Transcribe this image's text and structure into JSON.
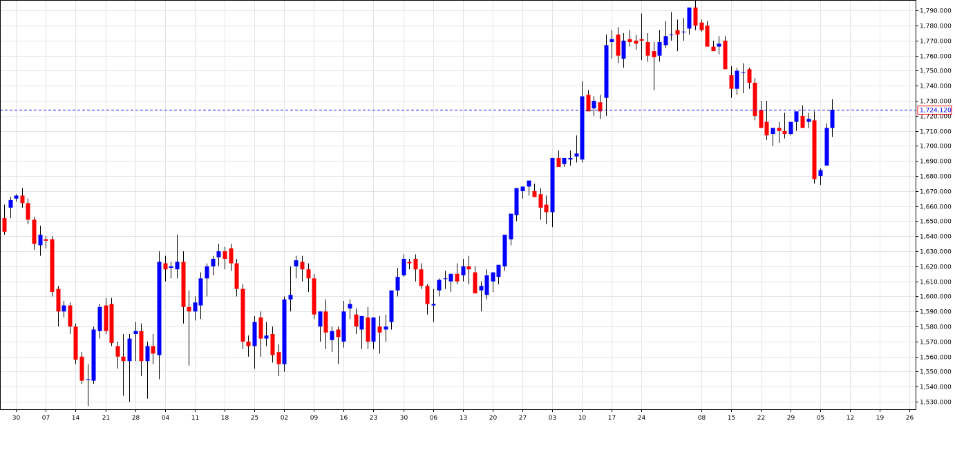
{
  "chart_data": {
    "type": "candlestick",
    "colors": {
      "up": "#0000ff",
      "down": "#ff0000",
      "wick": "#000000",
      "grid": "#e4e4e4",
      "frame": "#000000",
      "current_line": "#0000ff",
      "price_box": "#ff0000"
    },
    "ylim": [
      1525000,
      1797000
    ],
    "y_ticks": [
      "1,530.000",
      "1,540.000",
      "1,550.000",
      "1,560.000",
      "1,570.000",
      "1,580.000",
      "1,590.000",
      "1,600.000",
      "1,610.000",
      "1,620.000",
      "1,630.000",
      "1,640.000",
      "1,650.000",
      "1,660.000",
      "1,670.000",
      "1,680.000",
      "1,690.000",
      "1,700.000",
      "1,710.000",
      "1,720.000",
      "1,730.000",
      "1,740.000",
      "1,750.000",
      "1,760.000",
      "1,770.000",
      "1,780.000",
      "1,790.000"
    ],
    "x_ticks": [
      {
        "label": "30",
        "bar": 2
      },
      {
        "label": "07",
        "bar": 7
      },
      {
        "label": "14",
        "bar": 12
      },
      {
        "label": "21",
        "bar": 17
      },
      {
        "label": "28",
        "bar": 22
      },
      {
        "label": "04",
        "bar": 27
      },
      {
        "label": "11",
        "bar": 32
      },
      {
        "label": "18",
        "bar": 37
      },
      {
        "label": "25",
        "bar": 42
      },
      {
        "label": "02",
        "bar": 47
      },
      {
        "label": "09",
        "bar": 52
      },
      {
        "label": "16",
        "bar": 57
      },
      {
        "label": "23",
        "bar": 62
      },
      {
        "label": "30",
        "bar": 67
      },
      {
        "label": "06",
        "bar": 72
      },
      {
        "label": "13",
        "bar": 77
      },
      {
        "label": "20",
        "bar": 82
      },
      {
        "label": "27",
        "bar": 87
      },
      {
        "label": "03",
        "bar": 92
      },
      {
        "label": "10",
        "bar": 97
      },
      {
        "label": "17",
        "bar": 102
      },
      {
        "label": "24",
        "bar": 107
      },
      {
        "label": "08",
        "bar": 117
      },
      {
        "label": "15",
        "bar": 122
      },
      {
        "label": "22",
        "bar": 127
      },
      {
        "label": "29",
        "bar": 132
      },
      {
        "label": "05",
        "bar": 137
      },
      {
        "label": "12",
        "bar": 142
      },
      {
        "label": "19",
        "bar": 147
      },
      {
        "label": "26",
        "bar": 152
      }
    ],
    "current_price": 1724120,
    "current_price_label": "1,724.120",
    "candles": [
      [
        1652,
        1661,
        1641,
        1643
      ],
      [
        1659,
        1666,
        1652,
        1664
      ],
      [
        1665,
        1668,
        1663,
        1667
      ],
      [
        1667,
        1672,
        1659,
        1662
      ],
      [
        1662,
        1665,
        1648,
        1651
      ],
      [
        1651,
        1653,
        1631,
        1635
      ],
      [
        1634,
        1647,
        1627,
        1641
      ],
      [
        1638,
        1640,
        1632,
        1637
      ],
      [
        1638,
        1640,
        1600,
        1603
      ],
      [
        1605,
        1607,
        1580,
        1590
      ],
      [
        1590,
        1597,
        1586,
        1594
      ],
      [
        1594,
        1596,
        1575,
        1580
      ],
      [
        1580,
        1582,
        1555,
        1558
      ],
      [
        1560,
        1563,
        1542,
        1544
      ],
      [
        1545,
        1555,
        1527,
        1545
      ],
      [
        1544,
        1580,
        1542,
        1578
      ],
      [
        1577,
        1595,
        1572,
        1593
      ],
      [
        1594,
        1599,
        1575,
        1577
      ],
      [
        1595,
        1599,
        1567,
        1569
      ],
      [
        1567,
        1570,
        1552,
        1560
      ],
      [
        1560,
        1575,
        1534,
        1557
      ],
      [
        1557,
        1575,
        1530,
        1572
      ],
      [
        1575,
        1583,
        1557,
        1577
      ],
      [
        1577,
        1582,
        1547,
        1557
      ],
      [
        1557,
        1570,
        1532,
        1567
      ],
      [
        1567,
        1575,
        1555,
        1562
      ],
      [
        1561,
        1630,
        1545,
        1623
      ],
      [
        1622,
        1627,
        1610,
        1618
      ],
      [
        1619,
        1623,
        1612,
        1620
      ],
      [
        1618,
        1641,
        1612,
        1623
      ],
      [
        1623,
        1630,
        1582,
        1593
      ],
      [
        1593,
        1604,
        1554,
        1590
      ],
      [
        1590,
        1600,
        1584,
        1596
      ],
      [
        1594,
        1616,
        1585,
        1612
      ],
      [
        1612,
        1622,
        1600,
        1620
      ],
      [
        1620,
        1627,
        1614,
        1625
      ],
      [
        1626,
        1635,
        1620,
        1630
      ],
      [
        1630,
        1633,
        1618,
        1625
      ],
      [
        1632,
        1635,
        1617,
        1622
      ],
      [
        1622,
        1625,
        1600,
        1605
      ],
      [
        1605,
        1608,
        1565,
        1570
      ],
      [
        1570,
        1574,
        1560,
        1567
      ],
      [
        1567,
        1587,
        1552,
        1583
      ],
      [
        1586,
        1590,
        1560,
        1572
      ],
      [
        1572,
        1583,
        1567,
        1574
      ],
      [
        1575,
        1580,
        1556,
        1561
      ],
      [
        1563,
        1568,
        1547,
        1555
      ],
      [
        1555,
        1600,
        1550,
        1598
      ],
      [
        1598,
        1620,
        1590,
        1601
      ],
      [
        1620,
        1627,
        1612,
        1624
      ],
      [
        1623,
        1627,
        1610,
        1618
      ],
      [
        1618,
        1622,
        1603,
        1612
      ],
      [
        1612,
        1615,
        1585,
        1588
      ],
      [
        1580,
        1590,
        1570,
        1590
      ],
      [
        1590,
        1598,
        1565,
        1576
      ],
      [
        1571,
        1580,
        1563,
        1577
      ],
      [
        1578,
        1580,
        1555,
        1573
      ],
      [
        1570,
        1597,
        1566,
        1590
      ],
      [
        1592,
        1598,
        1585,
        1595
      ],
      [
        1588,
        1592,
        1575,
        1580
      ],
      [
        1578,
        1585,
        1565,
        1587
      ],
      [
        1586,
        1593,
        1565,
        1570
      ],
      [
        1570,
        1585,
        1565,
        1586
      ],
      [
        1580,
        1587,
        1562,
        1576
      ],
      [
        1578,
        1588,
        1570,
        1580
      ],
      [
        1583,
        1590,
        1578,
        1604
      ],
      [
        1604,
        1619,
        1600,
        1613
      ],
      [
        1614,
        1628,
        1613,
        1625
      ],
      [
        1623,
        1625,
        1618,
        1622
      ],
      [
        1625,
        1628,
        1610,
        1618
      ],
      [
        1618,
        1622,
        1605,
        1607
      ],
      [
        1607,
        1608,
        1588,
        1595
      ],
      [
        1594,
        1605,
        1583,
        1595
      ],
      [
        1604,
        1612,
        1600,
        1611
      ],
      [
        1612,
        1617,
        1605,
        1612
      ],
      [
        1610,
        1615,
        1603,
        1615
      ],
      [
        1615,
        1622,
        1608,
        1610
      ],
      [
        1614,
        1625,
        1610,
        1620
      ],
      [
        1620,
        1627,
        1608,
        1618
      ],
      [
        1616,
        1620,
        1605,
        1602
      ],
      [
        1604,
        1610,
        1590,
        1607
      ],
      [
        1601,
        1618,
        1598,
        1614
      ],
      [
        1610,
        1615,
        1603,
        1616
      ],
      [
        1613,
        1620,
        1608,
        1621
      ],
      [
        1620,
        1636,
        1617,
        1641
      ],
      [
        1638,
        1641,
        1634,
        1655
      ],
      [
        1654,
        1660,
        1650,
        1672
      ],
      [
        1670,
        1672,
        1665,
        1673
      ],
      [
        1673,
        1675,
        1667,
        1677
      ],
      [
        1670,
        1675,
        1668,
        1666
      ],
      [
        1668,
        1672,
        1651,
        1659
      ],
      [
        1661,
        1667,
        1648,
        1656
      ],
      [
        1656,
        1660,
        1646,
        1692
      ],
      [
        1692,
        1697,
        1687,
        1686
      ],
      [
        1688,
        1691,
        1686,
        1692
      ],
      [
        1691,
        1697,
        1687,
        1692
      ],
      [
        1693,
        1707,
        1689,
        1695
      ],
      [
        1691,
        1743,
        1689,
        1733
      ],
      [
        1734,
        1737,
        1726,
        1723
      ],
      [
        1725,
        1733,
        1720,
        1730
      ],
      [
        1729,
        1734,
        1718,
        1723
      ],
      [
        1732,
        1774,
        1720,
        1767
      ],
      [
        1769,
        1777,
        1758,
        1771
      ],
      [
        1774,
        1779,
        1755,
        1760
      ],
      [
        1758,
        1775,
        1752,
        1770
      ],
      [
        1771,
        1777,
        1766,
        1769
      ],
      [
        1770,
        1774,
        1764,
        1768
      ],
      [
        1771,
        1788,
        1757,
        1770
      ],
      [
        1769,
        1775,
        1756,
        1760
      ],
      [
        1763,
        1769,
        1737,
        1759
      ],
      [
        1760,
        1777,
        1756,
        1769
      ],
      [
        1767,
        1783,
        1765,
        1773
      ],
      [
        1774,
        1789,
        1770,
        1774
      ],
      [
        1777,
        1784,
        1763,
        1774
      ],
      [
        1776,
        1785,
        1770,
        1776
      ],
      [
        1778,
        1790,
        1774,
        1792
      ],
      [
        1792,
        1797,
        1777,
        1780
      ],
      [
        1782,
        1784,
        1776,
        1777
      ],
      [
        1780,
        1783,
        1767,
        1766
      ],
      [
        1766,
        1770,
        1764,
        1763
      ],
      [
        1766,
        1773,
        1761,
        1768
      ],
      [
        1770,
        1773,
        1753,
        1751
      ],
      [
        1747,
        1753,
        1732,
        1738
      ],
      [
        1738,
        1752,
        1734,
        1750
      ],
      [
        1749,
        1755,
        1735,
        1749
      ],
      [
        1751,
        1752,
        1738,
        1742
      ],
      [
        1742,
        1745,
        1717,
        1720
      ],
      [
        1724,
        1730,
        1715,
        1712
      ],
      [
        1716,
        1730,
        1704,
        1707
      ],
      [
        1708,
        1712,
        1700,
        1712
      ],
      [
        1712,
        1716,
        1702,
        1710
      ],
      [
        1710,
        1722,
        1705,
        1708
      ],
      [
        1708,
        1713,
        1707,
        1716
      ],
      [
        1716,
        1723,
        1710,
        1723
      ],
      [
        1720,
        1727,
        1712,
        1712
      ],
      [
        1716,
        1722,
        1712,
        1718
      ],
      [
        1717,
        1723,
        1675,
        1678
      ],
      [
        1680,
        1685,
        1674,
        1684
      ],
      [
        1687,
        1715,
        1687,
        1712
      ],
      [
        1712,
        1731,
        1706,
        1724
      ]
    ]
  }
}
